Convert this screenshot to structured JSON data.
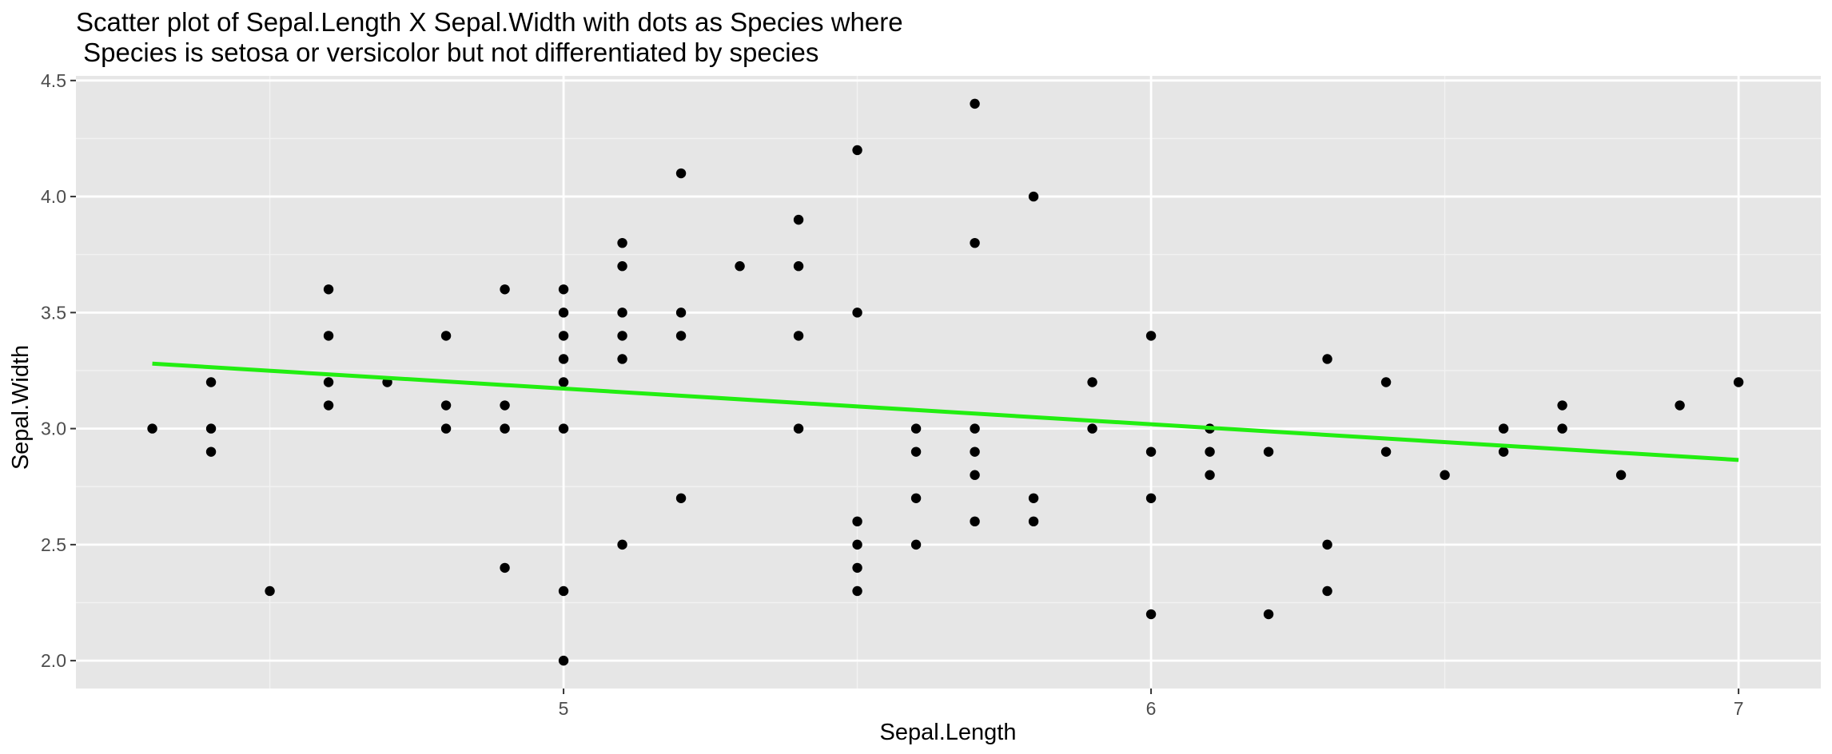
{
  "chart_data": {
    "type": "scatter",
    "title_lines": [
      "Scatter plot of Sepal.Length X Sepal.Width with dots as Species where",
      " Species is setosa or versicolor but not differentiated by species"
    ],
    "xlabel": "Sepal.Length",
    "ylabel": "Sepal.Width",
    "xlim": [
      4.17,
      7.14
    ],
    "ylim": [
      1.88,
      4.52
    ],
    "x_ticks": [
      5,
      6,
      7
    ],
    "y_ticks": [
      2.0,
      2.5,
      3.0,
      3.5,
      4.0,
      4.5
    ],
    "y_tick_labels": [
      "2.0",
      "2.5",
      "3.0",
      "3.5",
      "4.0",
      "4.5"
    ],
    "grid": true,
    "point_color": "#000000",
    "panel_color": "#e6e6e6",
    "points": [
      [
        4.3,
        3.0
      ],
      [
        4.4,
        3.2
      ],
      [
        4.4,
        3.0
      ],
      [
        4.4,
        2.9
      ],
      [
        4.5,
        2.3
      ],
      [
        4.6,
        3.6
      ],
      [
        4.6,
        3.4
      ],
      [
        4.6,
        3.2
      ],
      [
        4.6,
        3.1
      ],
      [
        4.7,
        3.2
      ],
      [
        4.8,
        3.4
      ],
      [
        4.8,
        3.1
      ],
      [
        4.8,
        3.0
      ],
      [
        4.9,
        3.6
      ],
      [
        4.9,
        3.1
      ],
      [
        4.9,
        3.0
      ],
      [
        4.9,
        2.4
      ],
      [
        5.0,
        3.6
      ],
      [
        5.0,
        3.5
      ],
      [
        5.0,
        3.4
      ],
      [
        5.0,
        3.3
      ],
      [
        5.0,
        3.2
      ],
      [
        5.0,
        3.0
      ],
      [
        5.0,
        2.3
      ],
      [
        5.0,
        2.0
      ],
      [
        5.1,
        3.8
      ],
      [
        5.1,
        3.7
      ],
      [
        5.1,
        3.5
      ],
      [
        5.1,
        3.4
      ],
      [
        5.1,
        3.3
      ],
      [
        5.1,
        2.5
      ],
      [
        5.2,
        4.1
      ],
      [
        5.2,
        3.5
      ],
      [
        5.2,
        3.4
      ],
      [
        5.2,
        2.7
      ],
      [
        5.3,
        3.7
      ],
      [
        5.4,
        3.9
      ],
      [
        5.4,
        3.7
      ],
      [
        5.4,
        3.4
      ],
      [
        5.4,
        3.0
      ],
      [
        5.5,
        4.2
      ],
      [
        5.5,
        3.5
      ],
      [
        5.5,
        2.6
      ],
      [
        5.5,
        2.5
      ],
      [
        5.5,
        2.4
      ],
      [
        5.5,
        2.3
      ],
      [
        5.6,
        3.0
      ],
      [
        5.6,
        2.9
      ],
      [
        5.6,
        2.7
      ],
      [
        5.6,
        2.5
      ],
      [
        5.7,
        4.4
      ],
      [
        5.7,
        3.8
      ],
      [
        5.7,
        3.0
      ],
      [
        5.7,
        2.9
      ],
      [
        5.7,
        2.8
      ],
      [
        5.7,
        2.6
      ],
      [
        5.8,
        4.0
      ],
      [
        5.8,
        2.7
      ],
      [
        5.8,
        2.6
      ],
      [
        5.9,
        3.2
      ],
      [
        5.9,
        3.0
      ],
      [
        6.0,
        3.4
      ],
      [
        6.0,
        2.9
      ],
      [
        6.0,
        2.7
      ],
      [
        6.0,
        2.2
      ],
      [
        6.1,
        3.0
      ],
      [
        6.1,
        2.9
      ],
      [
        6.1,
        2.8
      ],
      [
        6.2,
        2.9
      ],
      [
        6.2,
        2.2
      ],
      [
        6.3,
        3.3
      ],
      [
        6.3,
        2.5
      ],
      [
        6.3,
        2.3
      ],
      [
        6.4,
        3.2
      ],
      [
        6.4,
        2.9
      ],
      [
        6.5,
        2.8
      ],
      [
        6.6,
        3.0
      ],
      [
        6.6,
        2.9
      ],
      [
        6.7,
        3.1
      ],
      [
        6.7,
        3.0
      ],
      [
        6.8,
        2.8
      ],
      [
        6.9,
        3.1
      ],
      [
        7.0,
        3.2
      ]
    ],
    "trend_line": {
      "color": "#22ee11",
      "x": [
        4.3,
        7.0
      ],
      "y": [
        3.28,
        2.865
      ]
    }
  }
}
